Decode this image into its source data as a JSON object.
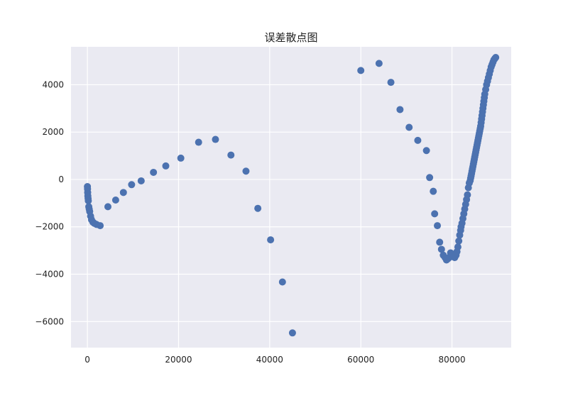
{
  "chart_data": {
    "type": "scatter",
    "title": "误差散点图",
    "xlabel": "",
    "ylabel": "",
    "xlim": [
      -3600,
      93000
    ],
    "ylim": [
      -7100,
      5600
    ],
    "xticks": [
      0,
      20000,
      40000,
      60000,
      80000
    ],
    "yticks": [
      -6000,
      -4000,
      -2000,
      0,
      2000,
      4000
    ],
    "xtick_labels": [
      "0",
      "20000",
      "40000",
      "60000",
      "80000"
    ],
    "ytick_labels": [
      "−6000",
      "−4000",
      "−2000",
      "0",
      "2000",
      "4000"
    ],
    "grid": true,
    "background": "#eaeaf2",
    "point_color": "#4c72b0",
    "series": [
      {
        "x": [
          0,
          30,
          60,
          100,
          150,
          200,
          300,
          400,
          500,
          700,
          900,
          1200,
          1500,
          2000,
          2800,
          4500,
          6200,
          7900,
          9700,
          11800,
          14500,
          17200,
          20500,
          24400,
          28100,
          31500,
          34800,
          37400,
          40200,
          42800,
          45000,
          60000,
          64000,
          66600,
          68600,
          70600,
          72500,
          74400,
          75100,
          75900,
          76200,
          76800,
          77300,
          77700,
          78100,
          78500,
          78800,
          79100,
          79400,
          79700,
          80000,
          80300,
          80600,
          80900,
          81100,
          81300,
          81500,
          81700,
          81900,
          82000,
          82200,
          82400,
          82600,
          82800,
          83000,
          83200,
          83400,
          83600,
          83800,
          84000,
          84100,
          84200,
          84300,
          84400,
          84500,
          84600,
          84700,
          84800,
          84900,
          85000,
          85100,
          85200,
          85300,
          85400,
          85500,
          85600,
          85700,
          85800,
          85900,
          86000,
          86100,
          86200,
          86300,
          86400,
          86500,
          86600,
          86700,
          86800,
          86900,
          87000,
          87100,
          87200,
          87400,
          87600,
          87800,
          88000,
          88200,
          88400,
          88600,
          88800,
          89000,
          89200,
          89400,
          89600
        ],
        "y": [
          -300,
          -400,
          -550,
          -700,
          -800,
          -900,
          -1150,
          -1250,
          -1350,
          -1550,
          -1700,
          -1800,
          -1850,
          -1900,
          -1950,
          -1150,
          -870,
          -550,
          -220,
          -60,
          300,
          570,
          900,
          1570,
          1690,
          1030,
          350,
          -1220,
          -2550,
          -4330,
          -6480,
          4600,
          4900,
          4100,
          2950,
          2200,
          1650,
          1220,
          80,
          -500,
          -1450,
          -1950,
          -2650,
          -2950,
          -3200,
          -3300,
          -3400,
          -3350,
          -3300,
          -3100,
          -3150,
          -3250,
          -3300,
          -3200,
          -3050,
          -2850,
          -2600,
          -2350,
          -2150,
          -2000,
          -1850,
          -1650,
          -1450,
          -1250,
          -1050,
          -850,
          -650,
          -350,
          -150,
          -50,
          50,
          150,
          250,
          350,
          450,
          550,
          650,
          750,
          850,
          950,
          1050,
          1150,
          1250,
          1350,
          1450,
          1550,
          1650,
          1750,
          1850,
          1950,
          2050,
          2150,
          2250,
          2400,
          2550,
          2700,
          2850,
          3000,
          3150,
          3300,
          3450,
          3600,
          3800,
          4000,
          4150,
          4300,
          4450,
          4600,
          4750,
          4850,
          4950,
          5050,
          5100,
          5150
        ]
      }
    ]
  }
}
